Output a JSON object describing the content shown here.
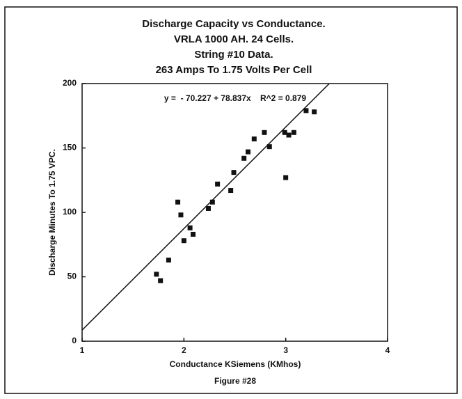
{
  "chart_data": {
    "type": "scatter",
    "title": [
      "Discharge Capacity vs Conductance.",
      "VRLA 1000 AH. 24 Cells.",
      "String #10 Data.",
      "263 Amps To 1.75 Volts Per Cell"
    ],
    "annotation": "y =  - 70.227 + 78.837x    R^2 = 0.879",
    "x_label": "Conductance KSiemens (KMhos)",
    "y_label": "Discharge Minutes To 1.75 VPC.",
    "caption": "Figure #28",
    "x": [
      1.73,
      1.77,
      1.85,
      1.94,
      1.97,
      2.0,
      2.06,
      2.09,
      2.24,
      2.28,
      2.33,
      2.46,
      2.49,
      2.59,
      2.63,
      2.69,
      2.79,
      2.84,
      2.99,
      3.0,
      3.03,
      3.08,
      3.2,
      3.28
    ],
    "values": [
      52,
      47,
      63,
      108,
      98,
      78,
      88,
      83,
      103,
      108,
      122,
      117,
      131,
      142,
      147,
      157,
      162,
      151,
      162,
      127,
      160,
      162,
      179,
      178
    ],
    "color": "#111111",
    "trendline": {
      "intercept": -70.227,
      "slope": 78.837
    },
    "xlim": [
      1,
      4
    ],
    "xticks": [
      1,
      2,
      3,
      4
    ],
    "ylim": [
      0,
      200
    ],
    "yticks": [
      0,
      50,
      100,
      150,
      200
    ],
    "grid": false
  }
}
